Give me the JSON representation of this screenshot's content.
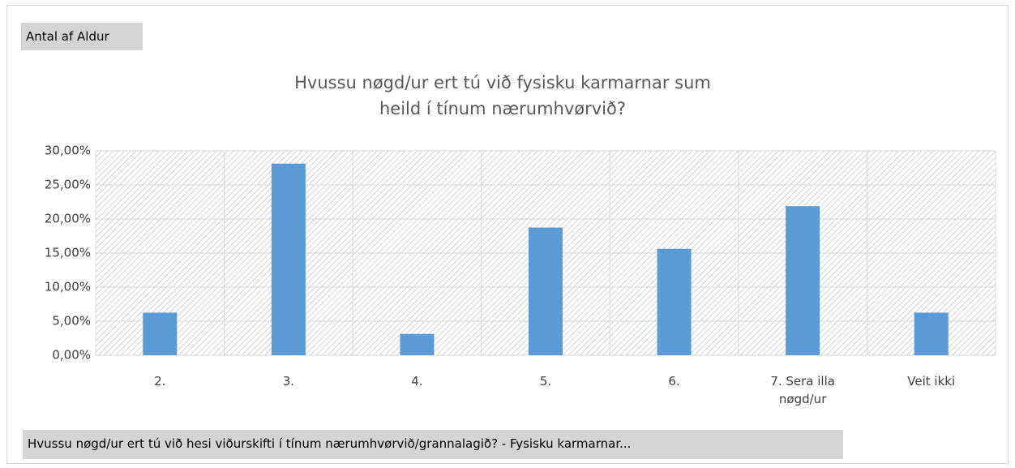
{
  "value_field": "Antal af Aldur",
  "axis_field": "Hvussu nøgd/ur ert tú við hesi viðurskifti í tínum nærumhvørvið/grannalagið? - Fysisku karmarnar...",
  "chart_data": {
    "type": "bar",
    "title": "Hvussu nøgd/ur ert tú við fysisku karmarnar sum heild í tínum nærumhvørvið?",
    "categories": [
      "2.",
      "3.",
      "4.",
      "5.",
      "6.",
      "7. Sera illa nøgd/ur",
      "Veit ikki"
    ],
    "values": [
      6.25,
      28.13,
      3.13,
      18.75,
      15.63,
      21.88,
      6.25
    ],
    "color": "#5b9bd5",
    "ylim": [
      0,
      30
    ],
    "yticks": [
      {
        "value": 0,
        "label": "0,00%"
      },
      {
        "value": 5,
        "label": "5,00%"
      },
      {
        "value": 10,
        "label": "10,00%"
      },
      {
        "value": 15,
        "label": "15,00%"
      },
      {
        "value": 20,
        "label": "20,00%"
      },
      {
        "value": 25,
        "label": "25,00%"
      },
      {
        "value": 30,
        "label": "30,00%"
      }
    ],
    "grid": true
  }
}
